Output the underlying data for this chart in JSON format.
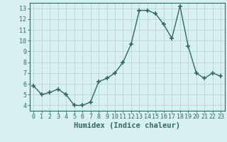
{
  "x": [
    0,
    1,
    2,
    3,
    4,
    5,
    6,
    7,
    8,
    9,
    10,
    11,
    12,
    13,
    14,
    15,
    16,
    17,
    18,
    19,
    20,
    21,
    22,
    23
  ],
  "y": [
    5.8,
    5.0,
    5.2,
    5.5,
    5.0,
    4.0,
    4.0,
    4.3,
    6.2,
    6.5,
    7.0,
    8.0,
    9.7,
    12.8,
    12.8,
    12.5,
    11.5,
    10.2,
    13.2,
    9.5,
    7.0,
    6.5,
    7.0,
    6.7
  ],
  "xlabel": "Humidex (Indice chaleur)",
  "ylim": [
    3.5,
    13.5
  ],
  "xlim": [
    -0.5,
    23.5
  ],
  "yticks": [
    4,
    5,
    6,
    7,
    8,
    9,
    10,
    11,
    12,
    13
  ],
  "xticks": [
    0,
    1,
    2,
    3,
    4,
    5,
    6,
    7,
    8,
    9,
    10,
    11,
    12,
    13,
    14,
    15,
    16,
    17,
    18,
    19,
    20,
    21,
    22,
    23
  ],
  "line_color": "#2e6b5e",
  "bg_color": "#d8f0f0",
  "grid_color": "#b8d4d4",
  "marker": "+",
  "markersize": 4,
  "linewidth": 1.0,
  "xlabel_fontsize": 7.5,
  "tick_fontsize": 6.0
}
